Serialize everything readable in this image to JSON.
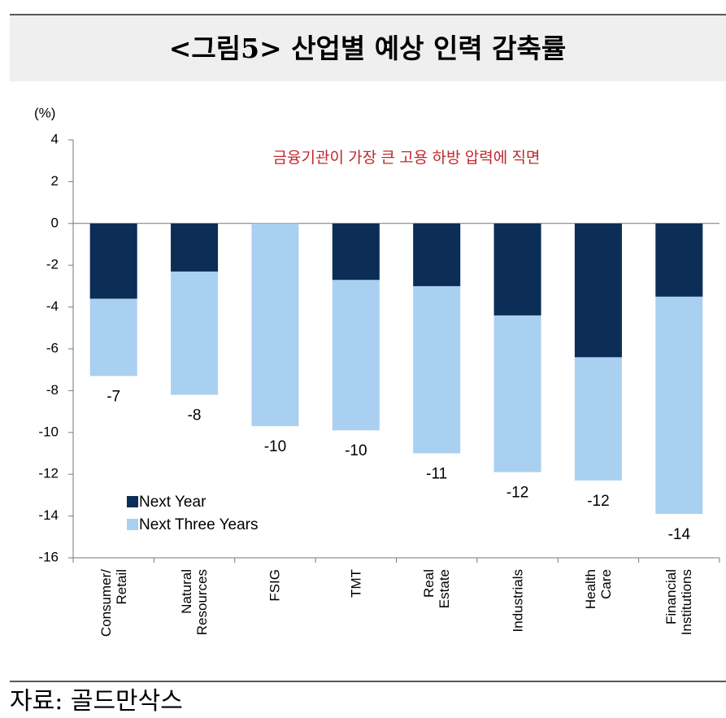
{
  "header": {
    "title": "<그림5> 산업별 예상 인력 감축률"
  },
  "chart_data": {
    "type": "bar",
    "overlap": true,
    "y_label": "(%)",
    "annotation": "금융기관이 가장 큰 고용 하방 압력에 직면",
    "categories": [
      "Consumer/\nRetail",
      "Natural\nResources",
      "FSIG",
      "TMT",
      "Real\nEstate",
      "Industrials",
      "Health\nCare",
      "Financial\nInstitutions"
    ],
    "series": [
      {
        "name": "Next Three Years",
        "color": "#a9d0f0",
        "values": [
          -7.3,
          -8.2,
          -9.7,
          -9.9,
          -11.0,
          -11.9,
          -12.3,
          -13.9
        ],
        "value_labels": [
          "-7",
          "-8",
          "-10",
          "-10",
          "-11",
          "-12",
          "-12",
          "-14"
        ]
      },
      {
        "name": "Next Year",
        "color": "#0c2d55",
        "values": [
          -3.6,
          -2.3,
          null,
          -2.7,
          -3.0,
          -4.4,
          -6.4,
          -3.5
        ]
      }
    ],
    "legend_order": [
      1,
      0
    ],
    "ylim": [
      -16,
      4
    ],
    "yticks": [
      -16,
      -14,
      -12,
      -10,
      -8,
      -6,
      -4,
      -2,
      0,
      2,
      4
    ]
  },
  "footer": {
    "source": "자료: 골드만삭스"
  }
}
